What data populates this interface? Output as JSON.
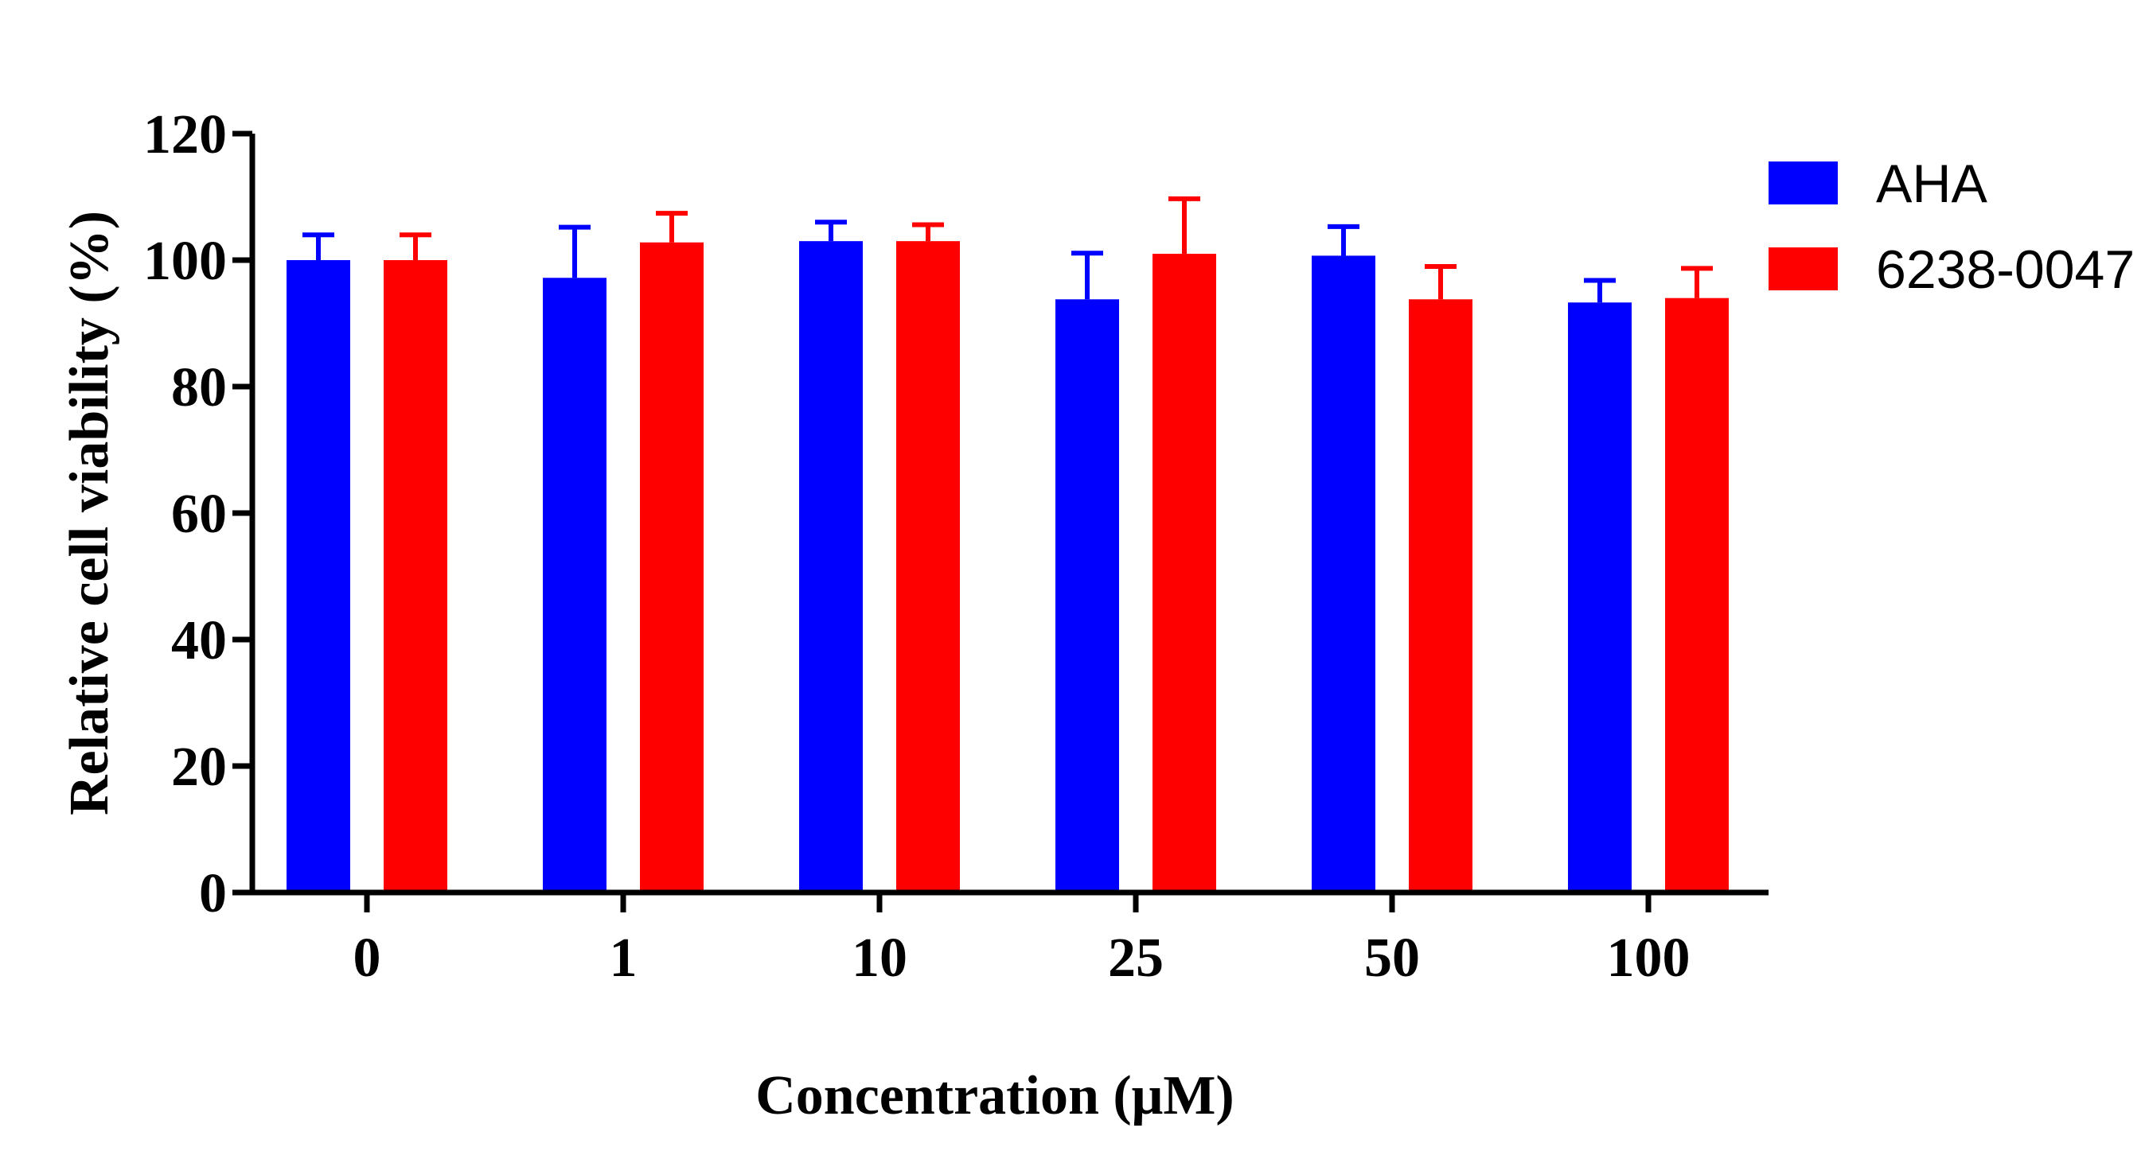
{
  "chart_data": {
    "type": "bar",
    "title": "",
    "xlabel": "Concentration (μM)",
    "ylabel": "Relative cell viability (%)",
    "ylim": [
      0,
      120
    ],
    "yticks": [
      "0",
      "20",
      "40",
      "60",
      "80",
      "100",
      "120"
    ],
    "categories": [
      "0",
      "1",
      "10",
      "25",
      "50",
      "100"
    ],
    "legend_position": "top-right",
    "grid": false,
    "series": [
      {
        "name": "AHA",
        "color": "#0000ff",
        "values": [
          100,
          97.2,
          103,
          93.8,
          100.7,
          93.3
        ],
        "errors": [
          4,
          8,
          3,
          7.3,
          4.6,
          3.5
        ]
      },
      {
        "name": "6238-0047",
        "color": "#ff0000",
        "values": [
          100,
          102.8,
          103,
          101,
          93.8,
          94
        ],
        "errors": [
          4,
          4.6,
          2.6,
          8.7,
          5.2,
          4.7
        ]
      }
    ]
  }
}
